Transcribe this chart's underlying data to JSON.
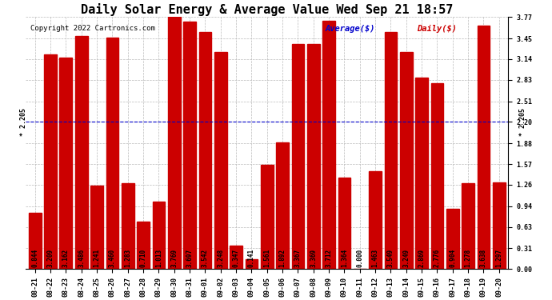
{
  "title": "Daily Solar Energy & Average Value Wed Sep 21 18:57",
  "copyright": "Copyright 2022 Cartronics.com",
  "legend_avg": "Average($)",
  "legend_daily": "Daily($)",
  "average_value": 2.205,
  "categories": [
    "08-21",
    "08-22",
    "08-23",
    "08-24",
    "08-25",
    "08-26",
    "08-27",
    "08-28",
    "08-29",
    "08-30",
    "08-31",
    "09-01",
    "09-02",
    "09-03",
    "09-04",
    "09-05",
    "09-06",
    "09-07",
    "09-08",
    "09-09",
    "09-10",
    "09-11",
    "09-12",
    "09-13",
    "09-14",
    "09-15",
    "09-16",
    "09-17",
    "09-18",
    "09-19",
    "09-20"
  ],
  "values": [
    0.844,
    3.209,
    3.162,
    3.486,
    1.241,
    3.46,
    1.283,
    0.71,
    1.013,
    3.769,
    3.697,
    3.542,
    3.248,
    0.347,
    0.141,
    1.561,
    1.892,
    3.367,
    3.369,
    3.712,
    1.364,
    0.0,
    1.463,
    3.549,
    3.249,
    2.869,
    2.776,
    0.904,
    1.278,
    3.638,
    1.297
  ],
  "bar_color": "#cc0000",
  "avg_line_color": "#0000cc",
  "background_color": "#ffffff",
  "grid_color": "#bbbbbb",
  "ylim_max": 3.77,
  "yticks": [
    0.0,
    0.31,
    0.63,
    0.94,
    1.26,
    1.57,
    1.88,
    2.2,
    2.51,
    2.83,
    3.14,
    3.45,
    3.77
  ],
  "title_fontsize": 11,
  "copyright_fontsize": 6.5,
  "legend_fontsize": 7.5,
  "tick_fontsize": 6,
  "value_text_fontsize": 5.5,
  "avg_label_fontsize": 6,
  "bar_width": 0.82
}
